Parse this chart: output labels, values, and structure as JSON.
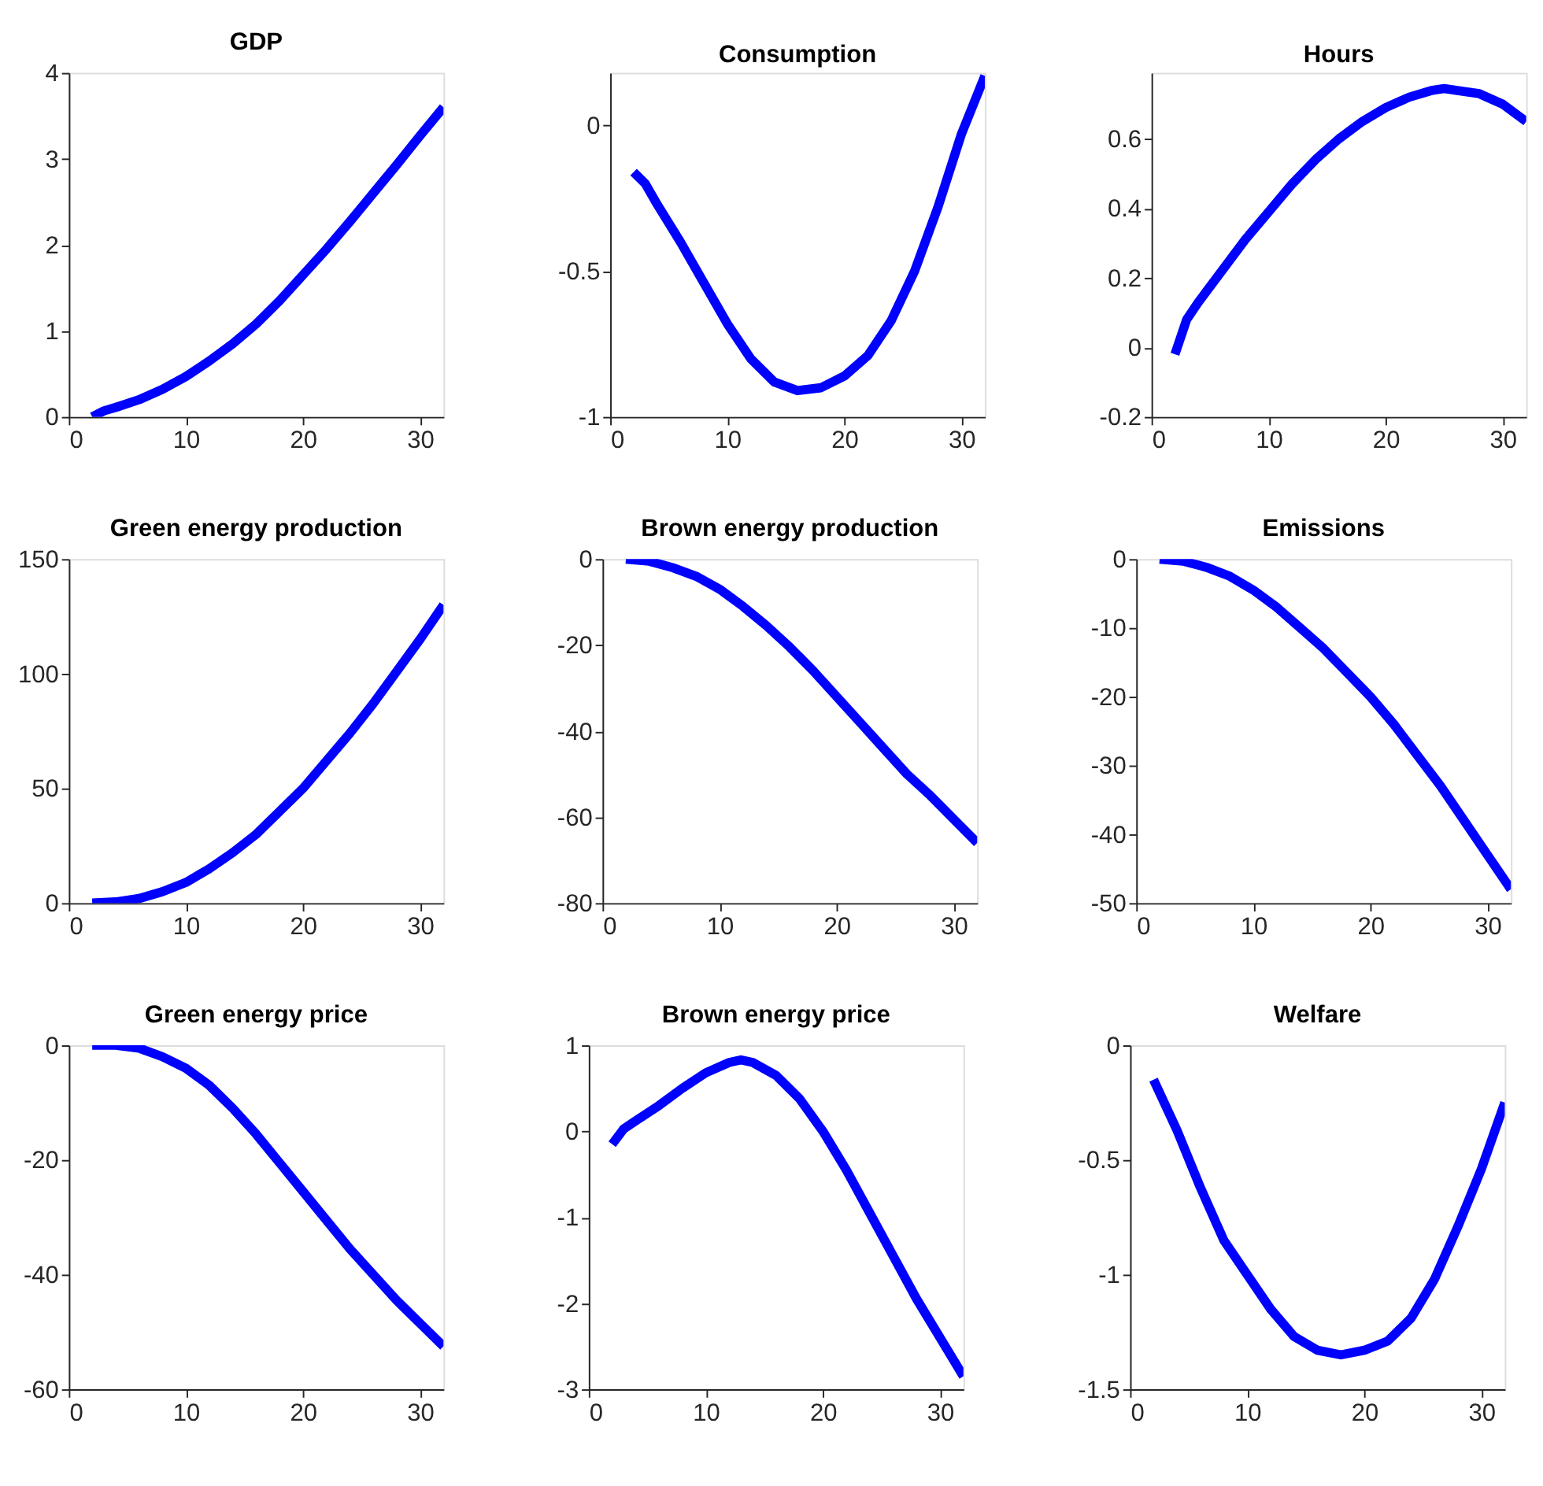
{
  "chart_data": [
    {
      "type": "line",
      "title": "GDP",
      "x": [
        2,
        3,
        4,
        6,
        8,
        10,
        12,
        14,
        16,
        18,
        20,
        22,
        24,
        26,
        28,
        30,
        32
      ],
      "series": [
        {
          "color": "#0000ff",
          "values": [
            0,
            0.07,
            0.11,
            0.2,
            0.32,
            0.47,
            0.65,
            0.85,
            1.08,
            1.35,
            1.65,
            1.95,
            2.27,
            2.6,
            2.93,
            3.27,
            3.6
          ]
        }
      ],
      "xlim": [
        0,
        32
      ],
      "xticks": [
        0,
        10,
        20,
        30
      ],
      "ylim": [
        0,
        4
      ],
      "yticks": [
        0,
        1,
        2,
        3,
        4
      ]
    },
    {
      "type": "line",
      "title": "Consumption",
      "x": [
        2,
        3,
        4,
        6,
        8,
        10,
        12,
        14,
        16,
        18,
        20,
        22,
        24,
        26,
        28,
        30,
        32
      ],
      "series": [
        {
          "color": "#0000ff",
          "values": [
            -0.16,
            -0.2,
            -0.27,
            -0.4,
            -0.54,
            -0.68,
            -0.8,
            -0.88,
            -0.91,
            -0.9,
            -0.86,
            -0.79,
            -0.67,
            -0.5,
            -0.28,
            -0.03,
            0.17
          ]
        }
      ],
      "xlim": [
        0,
        32
      ],
      "xticks": [
        0,
        10,
        20,
        30
      ],
      "ylim": [
        -1,
        0.18
      ],
      "yticks": [
        -1,
        -0.5,
        0
      ]
    },
    {
      "type": "line",
      "title": "Hours",
      "x": [
        2,
        3,
        4,
        6,
        8,
        10,
        12,
        14,
        16,
        18,
        20,
        22,
        24,
        25,
        26,
        28,
        30,
        32
      ],
      "series": [
        {
          "color": "#0000ff",
          "values": [
            -0.02,
            0.08,
            0.13,
            0.22,
            0.31,
            0.39,
            0.47,
            0.54,
            0.6,
            0.65,
            0.69,
            0.72,
            0.74,
            0.745,
            0.74,
            0.73,
            0.7,
            0.65
          ]
        }
      ],
      "xlim": [
        0,
        32
      ],
      "xticks": [
        0,
        10,
        20,
        30
      ],
      "ylim": [
        -0.2,
        0.79
      ],
      "yticks": [
        -0.2,
        0,
        0.2,
        0.4,
        0.6
      ]
    },
    {
      "type": "line",
      "title": "Green energy production",
      "x": [
        2,
        4,
        6,
        8,
        10,
        12,
        14,
        16,
        18,
        20,
        22,
        24,
        26,
        28,
        30,
        32
      ],
      "series": [
        {
          "color": "#0000ff",
          "values": [
            0,
            0.5,
            2,
            5,
            9,
            15,
            22,
            30,
            40,
            50,
            62,
            74,
            87,
            101,
            115,
            130
          ]
        }
      ],
      "xlim": [
        0,
        32
      ],
      "xticks": [
        0,
        10,
        20,
        30
      ],
      "ylim": [
        0,
        150
      ],
      "yticks": [
        0,
        50,
        100,
        150
      ]
    },
    {
      "type": "line",
      "title": "Brown energy production",
      "x": [
        2,
        4,
        6,
        8,
        10,
        12,
        14,
        16,
        18,
        20,
        22,
        24,
        26,
        28,
        30,
        32
      ],
      "series": [
        {
          "color": "#0000ff",
          "values": [
            0,
            -0.5,
            -2,
            -4,
            -7,
            -11,
            -15.5,
            -20.5,
            -26,
            -32,
            -38,
            -44,
            -50,
            -55,
            -60.5,
            -66
          ]
        }
      ],
      "xlim": [
        0,
        32
      ],
      "xticks": [
        0,
        10,
        20,
        30
      ],
      "ylim": [
        -80,
        0
      ],
      "yticks": [
        -80,
        -60,
        -40,
        -20,
        0
      ]
    },
    {
      "type": "line",
      "title": "Emissions",
      "x": [
        2,
        4,
        6,
        8,
        10,
        12,
        14,
        16,
        18,
        20,
        22,
        24,
        26,
        28,
        30,
        32
      ],
      "series": [
        {
          "color": "#0000ff",
          "values": [
            0,
            -0.3,
            -1.2,
            -2.5,
            -4.5,
            -7,
            -10,
            -13,
            -16.5,
            -20,
            -24,
            -28.5,
            -33,
            -38,
            -43,
            -48
          ]
        }
      ],
      "xlim": [
        0,
        32
      ],
      "xticks": [
        0,
        10,
        20,
        30
      ],
      "ylim": [
        -50,
        0
      ],
      "yticks": [
        -50,
        -40,
        -30,
        -20,
        -10,
        0
      ]
    },
    {
      "type": "line",
      "title": "Green energy price",
      "x": [
        2,
        4,
        6,
        8,
        10,
        12,
        14,
        16,
        18,
        20,
        22,
        24,
        26,
        28,
        30,
        32
      ],
      "series": [
        {
          "color": "#0000ff",
          "values": [
            0,
            0,
            -0.5,
            -2,
            -4,
            -7,
            -11,
            -15.5,
            -20.5,
            -25.5,
            -30.5,
            -35.5,
            -40,
            -44.5,
            -48.5,
            -52.5
          ]
        }
      ],
      "xlim": [
        0,
        32
      ],
      "xticks": [
        0,
        10,
        20,
        30
      ],
      "ylim": [
        -60,
        0
      ],
      "yticks": [
        -60,
        -40,
        -20,
        0
      ]
    },
    {
      "type": "line",
      "title": "Brown energy price",
      "x": [
        2,
        3,
        4,
        6,
        8,
        10,
        12,
        13,
        14,
        16,
        18,
        20,
        22,
        24,
        26,
        28,
        30,
        32
      ],
      "series": [
        {
          "color": "#0000ff",
          "values": [
            -0.15,
            0.03,
            0.12,
            0.3,
            0.5,
            0.68,
            0.8,
            0.83,
            0.8,
            0.65,
            0.38,
            0.0,
            -0.45,
            -0.95,
            -1.45,
            -1.95,
            -2.4,
            -2.85
          ]
        }
      ],
      "xlim": [
        0,
        32
      ],
      "xticks": [
        0,
        10,
        20,
        30
      ],
      "ylim": [
        -3,
        1
      ],
      "yticks": [
        -3,
        -2,
        -1,
        0,
        1
      ]
    },
    {
      "type": "line",
      "title": "Welfare",
      "x": [
        2,
        4,
        6,
        8,
        10,
        12,
        14,
        16,
        18,
        20,
        22,
        24,
        26,
        28,
        30,
        32
      ],
      "series": [
        {
          "color": "#0000ff",
          "values": [
            -0.15,
            -0.37,
            -0.62,
            -0.85,
            -1.0,
            -1.15,
            -1.27,
            -1.33,
            -1.35,
            -1.33,
            -1.29,
            -1.19,
            -1.02,
            -0.79,
            -0.54,
            -0.25
          ]
        }
      ],
      "xlim": [
        0,
        32
      ],
      "xticks": [
        0,
        10,
        20,
        30
      ],
      "ylim": [
        -1.5,
        0
      ],
      "yticks": [
        -1.5,
        -1,
        -0.5,
        0
      ]
    }
  ]
}
